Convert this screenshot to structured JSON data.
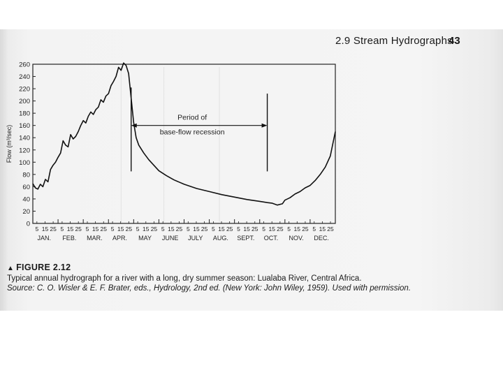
{
  "page": {
    "running_head": "2.9  Stream Hydrographs",
    "page_number": "43"
  },
  "chart_data": {
    "type": "line",
    "ylabel": "Flow (m³/sec)",
    "xlabel": "",
    "ylim": [
      0,
      260
    ],
    "yticks": [
      0,
      20,
      40,
      60,
      80,
      100,
      120,
      140,
      160,
      180,
      200,
      220,
      240,
      260
    ],
    "xlim": [
      0,
      12
    ],
    "months": [
      "JAN.",
      "FEB.",
      "MAR.",
      "APR.",
      "MAY",
      "JUNE",
      "JULY",
      "AUG.",
      "SEPT.",
      "OCT.",
      "NOV.",
      "DEC."
    ],
    "day_ticks": [
      "5",
      "15",
      "25"
    ],
    "annotation": {
      "line1": "Period of",
      "line2": "base-flow  recession",
      "start_month": 3.9,
      "end_month": 9.3
    },
    "series": [
      {
        "name": "",
        "x": [
          0.0,
          0.1,
          0.2,
          0.3,
          0.4,
          0.5,
          0.6,
          0.7,
          0.8,
          0.9,
          1.0,
          1.1,
          1.2,
          1.3,
          1.4,
          1.5,
          1.6,
          1.7,
          1.8,
          1.9,
          2.0,
          2.1,
          2.2,
          2.3,
          2.4,
          2.5,
          2.6,
          2.7,
          2.8,
          2.9,
          3.0,
          3.1,
          3.2,
          3.3,
          3.4,
          3.5,
          3.6,
          3.7,
          3.8,
          3.9,
          4.0,
          4.1,
          4.2,
          4.4,
          4.6,
          4.8,
          5.0,
          5.3,
          5.6,
          6.0,
          6.5,
          7.0,
          7.5,
          8.0,
          8.5,
          9.0,
          9.3,
          9.5,
          9.7,
          9.9,
          10.0,
          10.2,
          10.4,
          10.6,
          10.8,
          11.0,
          11.2,
          11.4,
          11.6,
          11.8,
          11.9,
          12.0
        ],
        "y": [
          65,
          58,
          56,
          64,
          60,
          72,
          68,
          88,
          95,
          100,
          108,
          115,
          135,
          128,
          125,
          145,
          138,
          142,
          150,
          160,
          168,
          164,
          175,
          182,
          178,
          186,
          190,
          202,
          198,
          208,
          212,
          225,
          232,
          240,
          255,
          250,
          262,
          258,
          245,
          205,
          165,
          140,
          128,
          115,
          104,
          95,
          86,
          78,
          71,
          64,
          57,
          52,
          47,
          43,
          39,
          36,
          34,
          33,
          30,
          32,
          38,
          42,
          48,
          52,
          58,
          62,
          70,
          80,
          92,
          110,
          130,
          150
        ]
      }
    ]
  },
  "caption": {
    "marker": "▲",
    "figure_label": "FIGURE 2.12",
    "text": "Typical annual hydrograph for a river with a long, dry summer season: Lualaba River, Central Africa.",
    "source": "Source: C. O. Wisler & E. F. Brater, eds., Hydrology, 2nd ed. (New York: John Wiley, 1959). Used with permission."
  }
}
